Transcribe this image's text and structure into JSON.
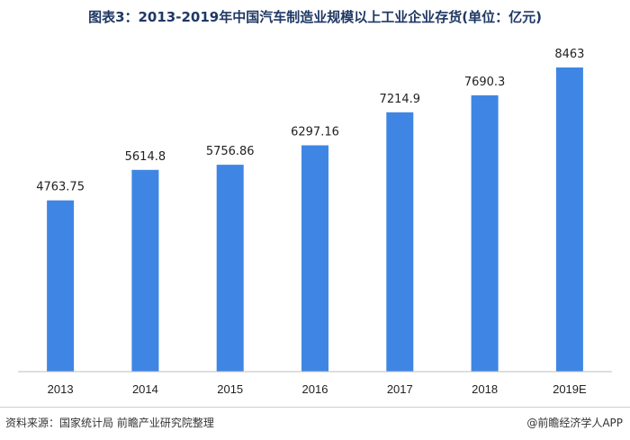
{
  "chart_data": {
    "type": "bar",
    "title": "图表3：2013-2019年中国汽车制造业规模以上工业企业存货(单位：亿元)",
    "categories": [
      "2013",
      "2014",
      "2015",
      "2016",
      "2017",
      "2018",
      "2019E"
    ],
    "values": [
      4763.75,
      5614.8,
      5756.86,
      6297.16,
      7214.9,
      7690.3,
      8463
    ],
    "data_labels": [
      "4763.75",
      "5614.8",
      "5756.86",
      "6297.16",
      "7214.9",
      "7690.3",
      "8463"
    ],
    "xlabel": "",
    "ylabel": "",
    "ylim": [
      0,
      9000
    ],
    "grid": false,
    "legend": "none",
    "bar_color": "#3f86e4",
    "axis_color": "#bfbfbf"
  },
  "footer": {
    "source": "资料来源：国家统计局 前瞻产业研究院整理",
    "credit": "@前瞻经济学人APP"
  }
}
